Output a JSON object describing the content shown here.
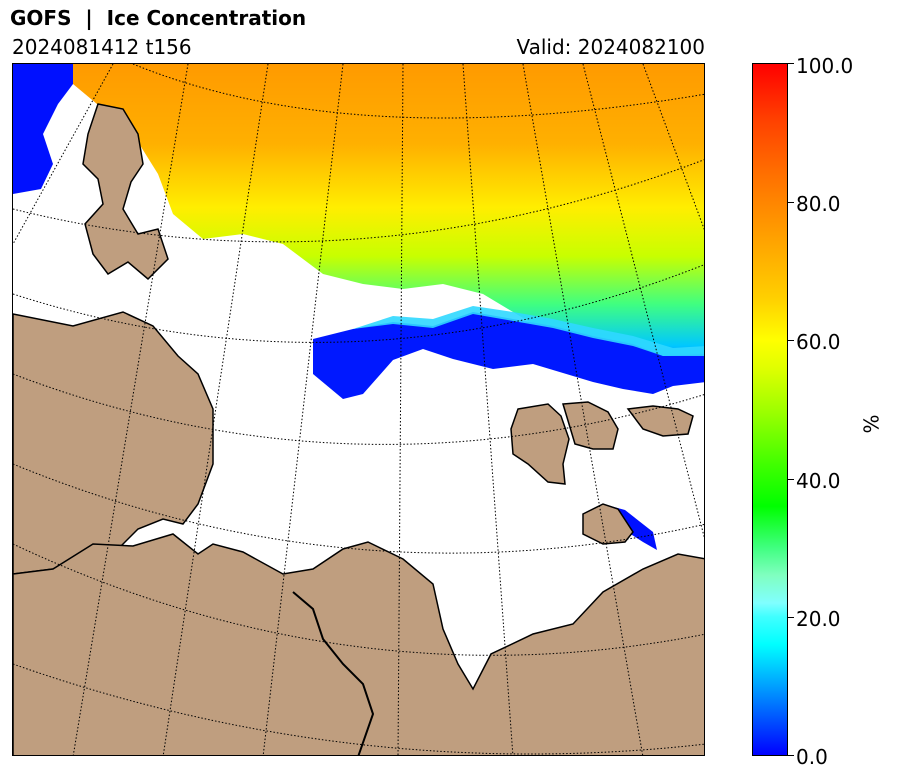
{
  "header": {
    "title": "GOFS  |  Ice Concentration",
    "run": "2024081412 t156",
    "valid": "Valid: 2024082100"
  },
  "colorbar": {
    "unit": "%",
    "ticks": [
      "100.0",
      "80.0",
      "60.0",
      "40.0",
      "20.0",
      "0.0"
    ],
    "min": 0,
    "max": 100
  },
  "colors": {
    "land": "#bf9e7f",
    "ocean_open": "#ffffff",
    "ice_low": "#0000ff",
    "ice_high": "#ff0000"
  }
}
